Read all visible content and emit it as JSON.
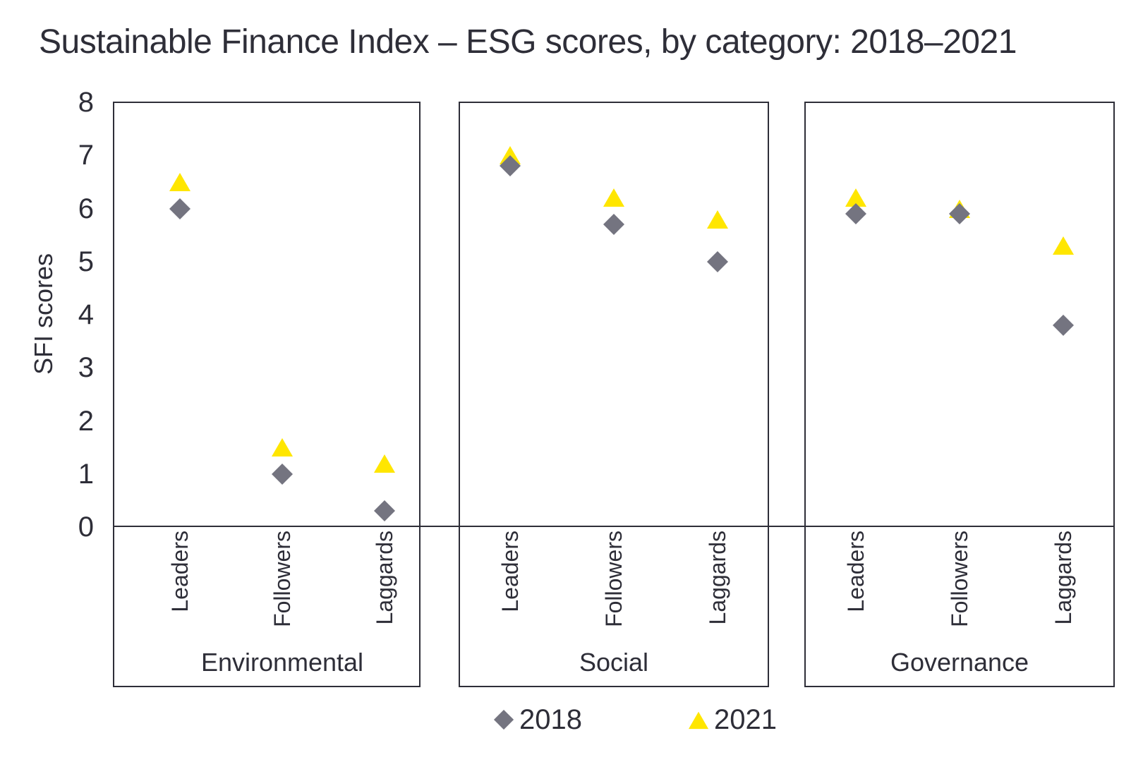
{
  "title": "Sustainable Finance Index – ESG scores, by category: 2018–2021",
  "y_axis": {
    "label": "SFI scores",
    "ticks": [
      8,
      7,
      6,
      5,
      4,
      3,
      2,
      1,
      0
    ]
  },
  "x_axis": {
    "categories": [
      "Leaders",
      "Followers",
      "Laggards"
    ]
  },
  "legend": {
    "items": [
      {
        "label": "2018",
        "marker": "diamond-icon"
      },
      {
        "label": "2021",
        "marker": "triangle-icon"
      }
    ]
  },
  "colors": {
    "yellow": "#ffe600",
    "gray": "#747480",
    "dark": "#2e2e38",
    "background": "#ffffff"
  },
  "chart_data": {
    "type": "scatter",
    "title": "Sustainable Finance Index – ESG scores, by category: 2018–2021",
    "ylabel": "SFI scores",
    "ylim": [
      0,
      8
    ],
    "y_tick_step": 1,
    "grid": false,
    "legend_position": "bottom",
    "categories": [
      "Leaders",
      "Followers",
      "Laggards"
    ],
    "panels": [
      {
        "name": "Environmental",
        "series": [
          {
            "name": "2018",
            "marker": "diamond",
            "color": "#747480",
            "values": [
              6.0,
              1.0,
              0.3
            ]
          },
          {
            "name": "2021",
            "marker": "triangle",
            "color": "#ffe600",
            "values": [
              6.5,
              1.5,
              1.2
            ]
          }
        ]
      },
      {
        "name": "Social",
        "series": [
          {
            "name": "2018",
            "marker": "diamond",
            "color": "#747480",
            "values": [
              6.8,
              5.7,
              5.0
            ]
          },
          {
            "name": "2021",
            "marker": "triangle",
            "color": "#ffe600",
            "values": [
              7.0,
              6.2,
              5.8
            ]
          }
        ]
      },
      {
        "name": "Governance",
        "series": [
          {
            "name": "2018",
            "marker": "diamond",
            "color": "#747480",
            "values": [
              5.9,
              5.9,
              3.8
            ]
          },
          {
            "name": "2021",
            "marker": "triangle",
            "color": "#ffe600",
            "values": [
              6.2,
              6.0,
              5.3
            ]
          }
        ]
      }
    ]
  }
}
